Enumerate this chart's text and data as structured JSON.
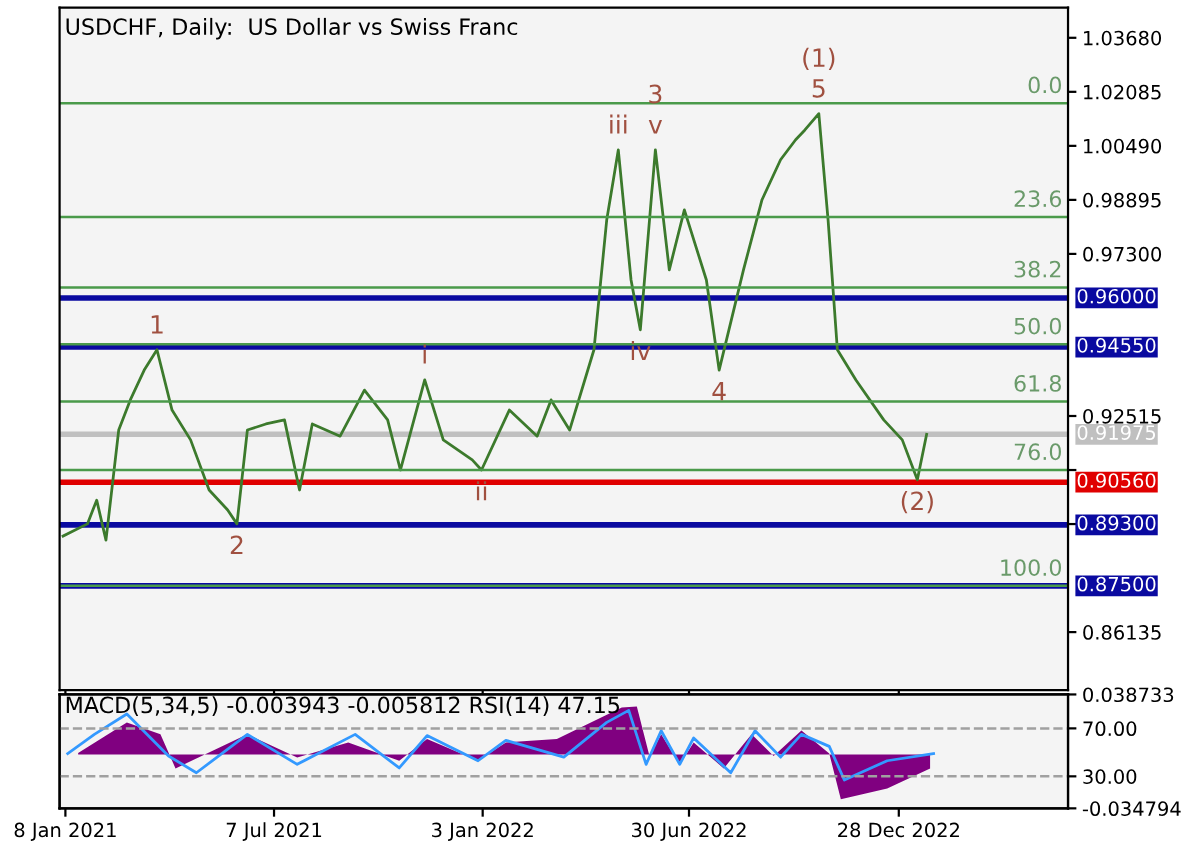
{
  "chart_data": [
    {
      "type": "line",
      "title": "USDCHF, Daily:  US Dollar vs Swiss Franc",
      "tick_labels": "y",
      "grid": false,
      "legend": false,
      "xlim": [
        "2021-01-03",
        "2023-05-23"
      ],
      "xticks": [
        {
          "value": "2021-01-08",
          "label": null
        },
        {
          "value": "2021-07-07",
          "label": null
        },
        {
          "value": "2022-01-03",
          "label": null
        },
        {
          "value": "2022-06-30",
          "label": null
        },
        {
          "value": "2022-12-28",
          "label": null
        }
      ],
      "ylim": [
        0.8442,
        1.0457
      ],
      "yticks": [
        {
          "value": 1.0368,
          "label": "1.03680"
        },
        {
          "value": 1.02085,
          "label": "1.02085"
        },
        {
          "value": 1.0049,
          "label": "1.00490"
        },
        {
          "value": 0.98895,
          "label": "0.98895"
        },
        {
          "value": 0.973,
          "label": "0.97300"
        },
        {
          "value": 0.92515,
          "label": "0.92515"
        },
        {
          "value": 0.9092,
          "label": null
        },
        {
          "value": 0.89325,
          "label": null
        },
        {
          "value": 0.86135,
          "label": "0.86135"
        }
      ],
      "series": [
        {
          "color": "#3c7a2c",
          "x": [
            "2021-01-06",
            "2021-01-27",
            "2021-02-04",
            "2021-02-12",
            "2021-02-23",
            "2021-03-05",
            "2021-03-17",
            "2021-03-28",
            "2021-04-10",
            "2021-04-26",
            "2021-05-12",
            "2021-05-28",
            "2021-06-05",
            "2021-06-14",
            "2021-06-30",
            "2021-07-16",
            "2021-07-29",
            "2021-08-09",
            "2021-09-02",
            "2021-09-23",
            "2021-10-13",
            "2021-10-24",
            "2021-11-14",
            "2021-11-30",
            "2021-12-25",
            "2022-01-02",
            "2022-01-26",
            "2022-02-19",
            "2022-03-03",
            "2022-03-19",
            "2022-04-09",
            "2022-04-20",
            "2022-04-30",
            "2022-05-11",
            "2022-05-19",
            "2022-06-01",
            "2022-06-13",
            "2022-06-26",
            "2022-07-15",
            "2022-07-26",
            "2022-08-16",
            "2022-09-01",
            "2022-09-17",
            "2022-09-30",
            "2022-10-08",
            "2022-10-20",
            "2022-10-28",
            "2022-11-05",
            "2022-11-21",
            "2022-12-15",
            "2022-12-31",
            "2023-01-13",
            "2023-01-21"
          ],
          "values": [
            0.8897,
            0.8933,
            0.9003,
            0.8885,
            0.921,
            0.9299,
            0.9387,
            0.9447,
            0.9269,
            0.9181,
            0.9033,
            0.8974,
            0.8933,
            0.921,
            0.9228,
            0.924,
            0.9033,
            0.9228,
            0.9192,
            0.9328,
            0.924,
            0.9092,
            0.9358,
            0.9181,
            0.9122,
            0.9092,
            0.9269,
            0.9192,
            0.9299,
            0.921,
            0.9447,
            0.983,
            1.0037,
            0.9653,
            0.9506,
            1.0037,
            0.9683,
            0.986,
            0.9653,
            0.9387,
            0.9683,
            0.989,
            1.0008,
            1.0067,
            1.0096,
            1.0144,
            0.983,
            0.9447,
            0.9358,
            0.924,
            0.9181,
            0.9063,
            0.91975
          ]
        }
      ],
      "ref_lines": [
        {
          "axis": "y",
          "value": 1.0175,
          "color": "#4a9a4a"
        },
        {
          "axis": "y",
          "value": 0.9839,
          "color": "#4a9a4a"
        },
        {
          "axis": "y",
          "value": 0.9631,
          "color": "#4a9a4a"
        },
        {
          "axis": "y",
          "value": 0.9463,
          "color": "#4a9a4a"
        },
        {
          "axis": "y",
          "value": 0.9294,
          "color": "#4a9a4a"
        },
        {
          "axis": "y",
          "value": 0.9092,
          "color": "#4a9a4a"
        },
        {
          "axis": "y",
          "value": 0.875,
          "color": "#4a9a4a"
        },
        {
          "axis": "y",
          "value": 0.96,
          "label": "0.96000",
          "color": "#0a0aa0"
        },
        {
          "axis": "y",
          "value": 0.9455,
          "label": "0.94550",
          "color": "#0a0aa0"
        },
        {
          "axis": "y",
          "value": 0.91975,
          "label": "0.91975",
          "color": "#c0c0c0"
        },
        {
          "axis": "y",
          "value": 0.9056,
          "label": "0.90560",
          "color": "#e00000"
        },
        {
          "axis": "y",
          "value": 0.893,
          "label": "0.89300",
          "color": "#0a0aa0"
        },
        {
          "axis": "y",
          "value": 0.875,
          "label": "0.87500",
          "color": "#0a0aa0"
        }
      ],
      "annotations": [
        "0.0",
        "23.6",
        "38.2",
        "50.0",
        "61.8",
        "76.0",
        "100.0",
        {
          "text": "1",
          "x": "2021-03-28",
          "y": 0.9447
        },
        {
          "text": "2",
          "x": "2021-06-05",
          "y": 0.8933
        },
        {
          "text": "v",
          "x": "2022-06-01",
          "y": 1.0037
        },
        {
          "text": "3",
          "x": "2022-06-01",
          "y": 1.0037
        },
        {
          "text": "4",
          "x": "2022-07-26",
          "y": 0.9387
        },
        {
          "text": "5",
          "x": "2022-10-20",
          "y": 1.0144
        },
        {
          "text": "(1)",
          "x": "2022-10-20",
          "y": 1.0144
        },
        {
          "text": "(2)",
          "x": "2023-01-13",
          "y": 0.9063
        },
        {
          "text": "i",
          "x": "2021-11-14",
          "y": 0.9358
        },
        {
          "text": "ii",
          "x": "2022-01-02",
          "y": 0.9092
        },
        {
          "text": "iii",
          "x": "2022-04-30",
          "y": 1.0037
        },
        {
          "text": "iv",
          "x": "2022-05-19",
          "y": 0.9506
        }
      ]
    },
    {
      "type": "area",
      "title": "MACD(5,34,5) -0.003943 -0.005812 RSI(14) 47.15",
      "grid": false,
      "legend": false,
      "xlim": [
        "2021-01-03",
        "2023-05-23"
      ],
      "xticks": [
        {
          "value": "2021-01-08",
          "label": "8 Jan 2021"
        },
        {
          "value": "2021-07-07",
          "label": "7 Jul 2021"
        },
        {
          "value": "2022-01-03",
          "label": "3 Jan 2022"
        },
        {
          "value": "2022-06-30",
          "label": "30 Jun 2022"
        },
        {
          "value": "2022-12-28",
          "label": "28 Dec 2022"
        }
      ],
      "ylim": [
        -0.034794,
        0.038733
      ],
      "yticks": [
        {
          "value": 0.038733,
          "label": "0.038733"
        },
        {
          "value": -0.034794,
          "label": "-0.034794"
        }
      ],
      "y2lim": [
        3.3,
        98.3
      ],
      "y2ticks": [
        {
          "value": 70,
          "label": "70.00"
        },
        {
          "value": 30,
          "label": "30.00"
        }
      ],
      "series": [
        {
          "color": "#800080",
          "x": [
            "2021-01-19",
            "2021-03-02",
            "2021-03-31",
            "2021-04-13",
            "2021-06-14",
            "2021-07-27",
            "2021-09-09",
            "2021-10-23",
            "2021-11-16",
            "2021-12-30",
            "2022-01-23",
            "2022-03-08",
            "2022-05-03",
            "2022-05-16",
            "2022-05-27",
            "2022-06-06",
            "2022-06-22",
            "2022-07-04",
            "2022-07-30",
            "2022-08-23",
            "2022-09-11",
            "2022-10-05",
            "2022-10-29",
            "2022-11-08",
            "2022-12-18",
            "2023-01-24"
          ],
          "values": [
            0.001,
            0.0206,
            0.013,
            -0.009,
            0.013,
            -0.002,
            0.0077,
            -0.004,
            0.01,
            -0.004,
            0.0077,
            0.01,
            0.0303,
            0.031,
            -0.0013,
            0.013,
            -0.0065,
            0.0077,
            -0.009,
            0.013,
            -0.001,
            0.0155,
            0.0006,
            -0.029,
            -0.022,
            -0.009
          ]
        },
        {
          "type": "line",
          "axis": "y2",
          "color": "#3399ff",
          "x": [
            "2021-01-10",
            "2021-02-02",
            "2021-03-02",
            "2021-04-07",
            "2021-05-01",
            "2021-06-14",
            "2021-07-27",
            "2021-09-15",
            "2021-10-23",
            "2021-11-16",
            "2021-12-30",
            "2022-01-23",
            "2022-03-14",
            "2022-04-20",
            "2022-05-09",
            "2022-05-24",
            "2022-06-06",
            "2022-06-22",
            "2022-07-04",
            "2022-08-05",
            "2022-08-26",
            "2022-09-17",
            "2022-10-05",
            "2022-10-29",
            "2022-11-11",
            "2022-12-18",
            "2023-01-27"
          ],
          "values": [
            49,
            65,
            82,
            47,
            33,
            65,
            40,
            65,
            37,
            64,
            43,
            60,
            46,
            75,
            85,
            40,
            68,
            40,
            62,
            33,
            68,
            46,
            65,
            55,
            27,
            43,
            49
          ]
        }
      ],
      "ref_lines": [
        {
          "axis": "y2",
          "value": 70,
          "color": "#a0a0a0",
          "line_style": "dashed"
        },
        {
          "axis": "y2",
          "value": 30,
          "color": "#a0a0a0",
          "line_style": "dashed"
        }
      ]
    }
  ]
}
